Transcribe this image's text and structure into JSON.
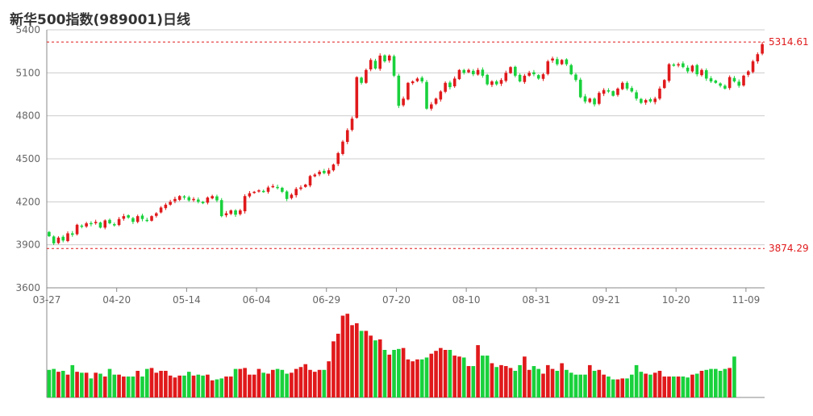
{
  "title": "新华500指数(989001)日线",
  "colors": {
    "up": "#e0191b",
    "down": "#19d13c",
    "grid": "#cccccc",
    "axis": "#888888",
    "ref": "#e0191b"
  },
  "chart_data": {
    "type": "candlestick",
    "title": "新华500指数(989001)日线",
    "y_ticks": [
      3600,
      3900,
      4200,
      4500,
      4800,
      5100,
      5400
    ],
    "ylim": [
      3600,
      5400
    ],
    "x_tick_labels": [
      "03-27",
      "04-20",
      "05-14",
      "06-04",
      "06-29",
      "07-20",
      "08-10",
      "08-31",
      "09-21",
      "10-20",
      "11-09"
    ],
    "x_tick_index": [
      0,
      15,
      30,
      45,
      60,
      75,
      90,
      105,
      120,
      135,
      150
    ],
    "high_line": {
      "value": 5314.61,
      "label": "5314.61"
    },
    "low_line": {
      "value": 3874.29,
      "label": "3874.29"
    },
    "grid": true,
    "closes": [
      3960,
      3910,
      3950,
      3930,
      3980,
      3970,
      4040,
      4030,
      4050,
      4045,
      4060,
      4020,
      4070,
      4050,
      4040,
      4080,
      4100,
      4090,
      4060,
      4100,
      4080,
      4070,
      4100,
      4120,
      4160,
      4180,
      4200,
      4220,
      4240,
      4230,
      4210,
      4220,
      4200,
      4190,
      4230,
      4240,
      4210,
      4100,
      4120,
      4140,
      4110,
      4140,
      4240,
      4260,
      4270,
      4280,
      4270,
      4300,
      4310,
      4300,
      4270,
      4220,
      4250,
      4290,
      4300,
      4320,
      4380,
      4390,
      4410,
      4400,
      4420,
      4460,
      4540,
      4620,
      4700,
      4780,
      5070,
      5030,
      5120,
      5190,
      5130,
      5220,
      5180,
      5220,
      5080,
      4870,
      4920,
      5030,
      5040,
      5060,
      5040,
      4850,
      4880,
      4920,
      4970,
      5030,
      5000,
      5060,
      5120,
      5100,
      5120,
      5090,
      5120,
      5080,
      5020,
      5040,
      5020,
      5050,
      5100,
      5140,
      5080,
      5040,
      5080,
      5100,
      5090,
      5060,
      5090,
      5180,
      5200,
      5160,
      5190,
      5160,
      5090,
      5050,
      4930,
      4900,
      4920,
      4880,
      4960,
      4980,
      4970,
      4940,
      4990,
      5030,
      4990,
      4970,
      4920,
      4890,
      4910,
      4900,
      4920,
      4990,
      5050,
      5160,
      5150,
      5160,
      5140,
      5110,
      5150,
      5090,
      5120,
      5060,
      5040,
      5030,
      5010,
      4990,
      5070,
      5040,
      5010,
      5080,
      5110,
      5180,
      5230,
      5300
    ],
    "volume_scale": [
      0.29,
      0.3,
      0.27,
      0.28,
      0.24,
      0.34,
      0.27,
      0.26,
      0.26,
      0.2,
      0.26,
      0.25,
      0.22,
      0.3,
      0.24,
      0.24,
      0.22,
      0.22,
      0.22,
      0.28,
      0.22,
      0.3,
      0.31,
      0.26,
      0.28,
      0.28,
      0.23,
      0.21,
      0.23,
      0.23,
      0.27,
      0.23,
      0.24,
      0.23,
      0.24,
      0.18,
      0.19,
      0.2,
      0.22,
      0.22,
      0.3,
      0.3,
      0.31,
      0.24,
      0.24,
      0.3,
      0.26,
      0.25,
      0.29,
      0.3,
      0.29,
      0.25,
      0.26,
      0.3,
      0.32,
      0.35,
      0.29,
      0.27,
      0.29,
      0.29,
      0.38,
      0.59,
      0.67,
      0.86,
      0.88,
      0.76,
      0.78,
      0.7,
      0.7,
      0.65,
      0.6,
      0.61,
      0.5,
      0.45,
      0.5,
      0.51,
      0.52,
      0.4,
      0.38,
      0.4,
      0.4,
      0.42,
      0.46,
      0.49,
      0.52,
      0.5,
      0.5,
      0.44,
      0.43,
      0.42,
      0.33,
      0.33,
      0.55,
      0.44,
      0.44,
      0.36,
      0.32,
      0.34,
      0.33,
      0.31,
      0.28,
      0.34,
      0.43,
      0.29,
      0.33,
      0.3,
      0.25,
      0.34,
      0.3,
      0.28,
      0.36,
      0.29,
      0.26,
      0.24,
      0.24,
      0.24,
      0.34,
      0.28,
      0.29,
      0.24,
      0.22,
      0.19,
      0.19,
      0.2,
      0.2,
      0.24,
      0.34,
      0.27,
      0.25,
      0.24,
      0.26,
      0.28,
      0.22,
      0.22,
      0.22,
      0.22,
      0.22,
      0.21,
      0.24,
      0.25,
      0.28,
      0.29,
      0.3,
      0.3,
      0.28,
      0.3,
      0.31,
      0.43
    ]
  }
}
